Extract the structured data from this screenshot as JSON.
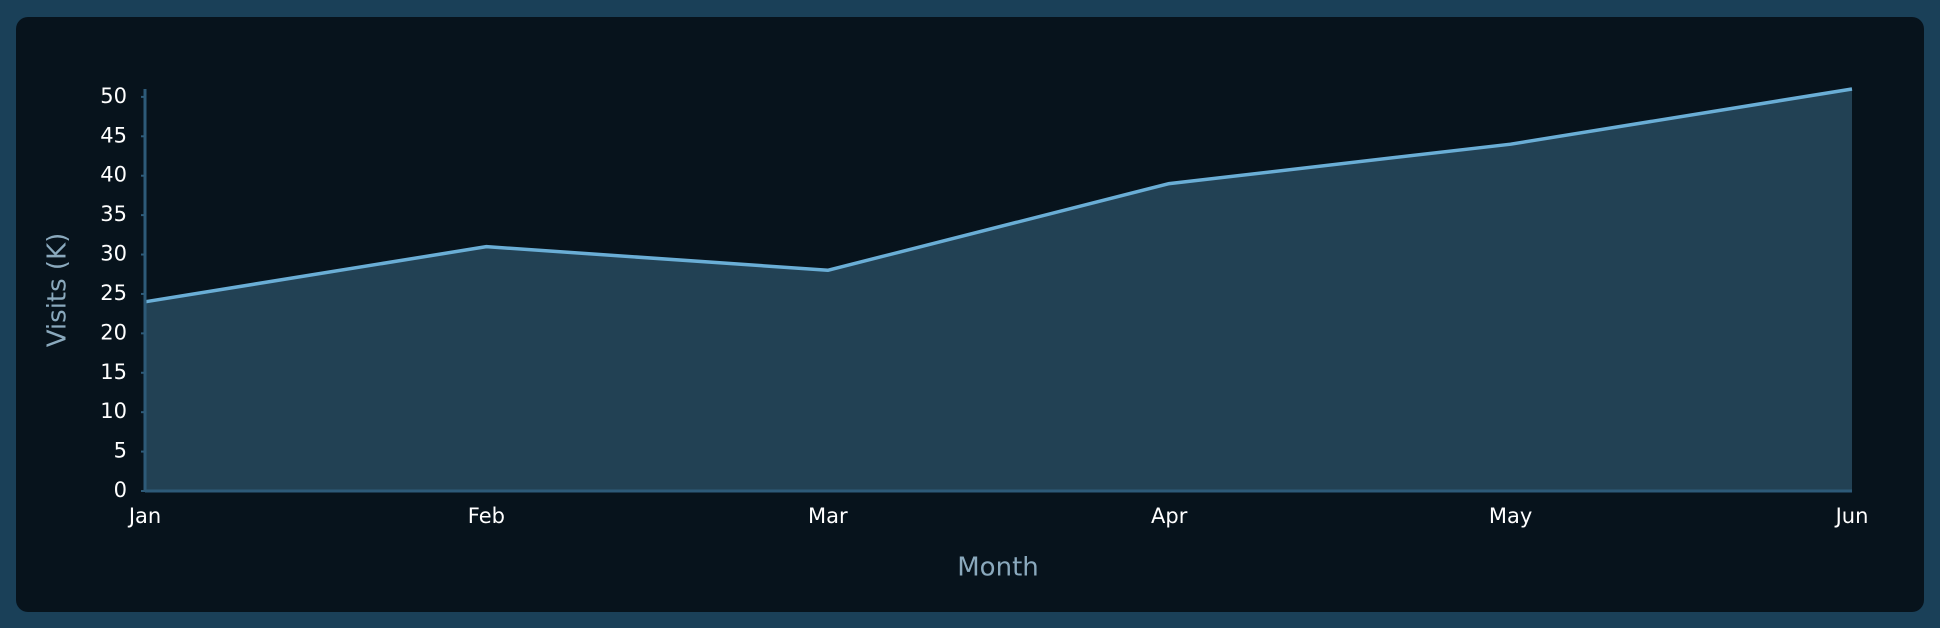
{
  "chart_data": {
    "type": "area",
    "x_label": "Month",
    "y_label": "Visits (K)",
    "categories": [
      "Jan",
      "Feb",
      "Mar",
      "Apr",
      "May",
      "Jun"
    ],
    "values": [
      24,
      31,
      28,
      39,
      44,
      51
    ],
    "color": "#6aaed6",
    "fill": "#224154",
    "ylim": [
      0,
      51
    ],
    "yticks": [
      0,
      5,
      10,
      15,
      20,
      25,
      30,
      35,
      40,
      45,
      50
    ],
    "grid": false
  }
}
